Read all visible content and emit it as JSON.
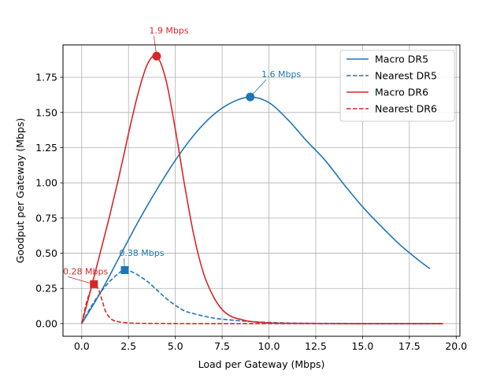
{
  "chart_data": {
    "type": "line",
    "title": "",
    "xlabel": "Load per Gateway (Mbps)",
    "ylabel": "Goodput per Gateway (Mbps)",
    "xlim": [
      -1.0,
      20.2
    ],
    "ylim": [
      -0.09,
      1.98
    ],
    "xticks": [
      0.0,
      2.5,
      5.0,
      7.5,
      10.0,
      12.5,
      15.0,
      17.5,
      20.0
    ],
    "xtick_labels": [
      "0.0",
      "2.5",
      "5.0",
      "7.5",
      "10.0",
      "12.5",
      "15.0",
      "17.5",
      "20.0"
    ],
    "yticks": [
      0.0,
      0.25,
      0.5,
      0.75,
      1.0,
      1.25,
      1.5,
      1.75
    ],
    "ytick_labels": [
      "0.00",
      "0.25",
      "0.50",
      "0.75",
      "1.00",
      "1.25",
      "1.50",
      "1.75"
    ],
    "grid": true,
    "legend_position": "top-right",
    "series": [
      {
        "name": "Macro DR5",
        "color": "#1f77b4",
        "dash": "solid",
        "x": [
          0,
          1,
          2,
          3,
          4,
          5,
          6,
          7,
          8,
          9,
          10,
          11,
          12,
          13,
          14,
          15,
          16,
          17,
          18,
          18.6
        ],
        "y": [
          0,
          0.22,
          0.47,
          0.72,
          0.95,
          1.16,
          1.34,
          1.48,
          1.57,
          1.61,
          1.57,
          1.45,
          1.3,
          1.16,
          0.99,
          0.83,
          0.69,
          0.56,
          0.45,
          0.39
        ]
      },
      {
        "name": "Nearest DR5",
        "color": "#1f77b4",
        "dash": "dashed",
        "x": [
          0,
          0.5,
          1,
          1.5,
          2,
          2.3,
          2.8,
          3.5,
          4,
          4.5,
          5,
          5.5,
          6,
          7,
          8,
          9,
          10,
          11,
          12,
          14,
          16,
          18,
          19.3
        ],
        "y": [
          0,
          0.12,
          0.22,
          0.3,
          0.36,
          0.38,
          0.36,
          0.3,
          0.24,
          0.18,
          0.13,
          0.09,
          0.07,
          0.04,
          0.025,
          0.015,
          0.008,
          0.004,
          0.002,
          0.001,
          0,
          0,
          0
        ]
      },
      {
        "name": "Macro DR6",
        "color": "#d62728",
        "dash": "solid",
        "x": [
          0,
          0.5,
          1,
          1.5,
          2,
          2.5,
          3,
          3.5,
          4,
          4.5,
          5,
          5.5,
          6,
          6.5,
          7,
          7.5,
          8,
          8.5,
          9,
          10,
          11,
          12,
          14,
          16,
          18,
          19.3
        ],
        "y": [
          0,
          0.25,
          0.51,
          0.77,
          1.05,
          1.35,
          1.63,
          1.84,
          1.9,
          1.73,
          1.38,
          0.98,
          0.62,
          0.36,
          0.2,
          0.1,
          0.05,
          0.03,
          0.015,
          0.005,
          0.002,
          0.001,
          0,
          0,
          0,
          0
        ]
      },
      {
        "name": "Nearest DR6",
        "color": "#d62728",
        "dash": "dashed",
        "x": [
          0,
          0.3,
          0.65,
          0.9,
          1.1,
          1.3,
          1.6,
          2,
          2.5,
          3,
          4,
          6,
          10,
          15,
          19.3
        ],
        "y": [
          0,
          0.17,
          0.28,
          0.24,
          0.16,
          0.08,
          0.03,
          0.012,
          0.005,
          0.002,
          0.001,
          0,
          0,
          0,
          0
        ]
      }
    ],
    "annotations": [
      {
        "series": 0,
        "marker": "circle",
        "x": 9.0,
        "y": 1.61,
        "text": "1.6 Mbps",
        "text_x": 9.6,
        "text_y": 1.75,
        "color": "#1f77b4"
      },
      {
        "series": 1,
        "marker": "square",
        "x": 2.3,
        "y": 0.38,
        "text": "0.38 Mbps",
        "text_x": 2.0,
        "text_y": 0.48,
        "color": "#1f77b4"
      },
      {
        "series": 2,
        "marker": "circle",
        "x": 4.0,
        "y": 1.9,
        "text": "1.9 Mbps",
        "text_x": 3.6,
        "text_y": 2.06,
        "color": "#d62728"
      },
      {
        "series": 3,
        "marker": "square",
        "x": 0.65,
        "y": 0.28,
        "text": "0.28 Mbps",
        "text_x": -1.0,
        "text_y": 0.35,
        "color": "#d62728"
      }
    ]
  }
}
